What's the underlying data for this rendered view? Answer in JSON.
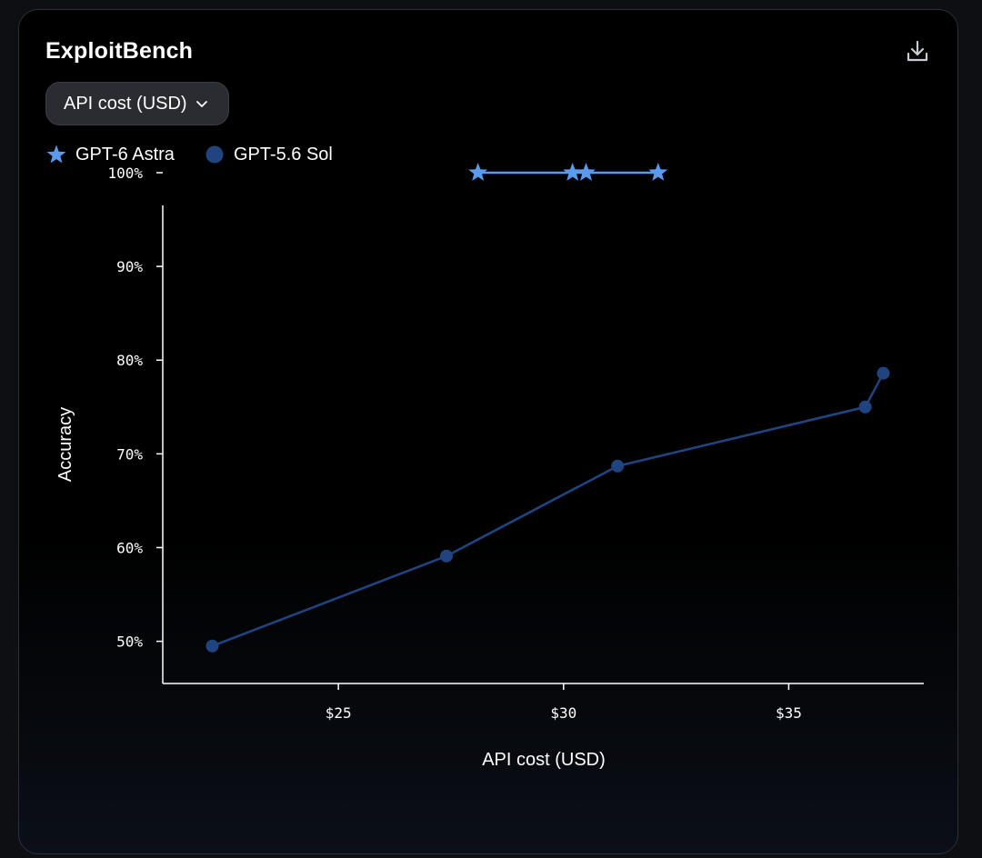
{
  "header": {
    "title": "ExploitBench",
    "download_icon": "download-icon"
  },
  "metric_selector": {
    "selected": "API cost (USD)",
    "icon": "chevron-down-icon"
  },
  "legend": {
    "items": [
      {
        "label": "GPT-6 Astra",
        "marker": "star"
      },
      {
        "label": "GPT-5.6 Sol",
        "marker": "circle"
      }
    ]
  },
  "colors": {
    "astra": "#5a9bf0",
    "sol": "#1f4480",
    "axis": "#ffffff",
    "background": "#000000"
  },
  "chart_data": {
    "type": "line",
    "title": "ExploitBench",
    "xlabel": "API cost (USD)",
    "ylabel": "Accuracy",
    "xlim": [
      21.1,
      38.0
    ],
    "ylim": [
      45.5,
      100
    ],
    "x_ticks": [
      25,
      30,
      35
    ],
    "x_tick_labels": [
      "$25",
      "$30",
      "$35"
    ],
    "y_ticks": [
      50,
      60,
      70,
      80,
      90,
      100
    ],
    "y_tick_labels": [
      "50%",
      "60%",
      "70%",
      "80%",
      "90%",
      "100%"
    ],
    "grid": false,
    "legend_position": "top-left",
    "series": [
      {
        "name": "GPT-6 Astra",
        "marker": "star",
        "points": [
          {
            "x": 28.1,
            "y": 100
          },
          {
            "x": 30.2,
            "y": 100
          },
          {
            "x": 30.5,
            "y": 100
          },
          {
            "x": 32.1,
            "y": 100
          }
        ]
      },
      {
        "name": "GPT-5.6 Sol",
        "marker": "circle",
        "points": [
          {
            "x": 22.2,
            "y": 49.5
          },
          {
            "x": 27.4,
            "y": 59.1
          },
          {
            "x": 31.2,
            "y": 68.7
          },
          {
            "x": 36.7,
            "y": 75.0
          },
          {
            "x": 37.1,
            "y": 78.6
          }
        ]
      }
    ]
  }
}
